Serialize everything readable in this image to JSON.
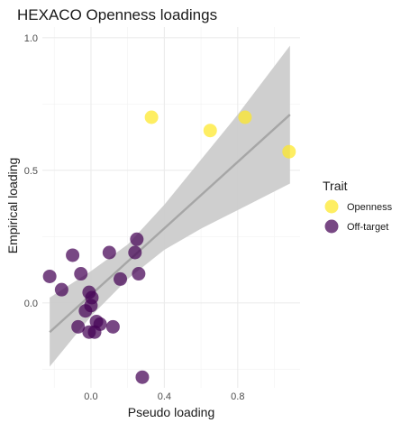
{
  "chart_data": {
    "type": "scatter",
    "title": "HEXACO Openness loadings",
    "xlabel": "Pseudo loading",
    "ylabel": "Empirical loading",
    "xlim": [
      -0.265,
      1.14
    ],
    "ylim": [
      -0.32,
      1.04
    ],
    "x_ticks": [
      0.0,
      0.4,
      0.8
    ],
    "x_tick_labels": [
      "0.0",
      "0.4",
      "0.8"
    ],
    "y_ticks": [
      0.0,
      0.5,
      1.0
    ],
    "y_tick_labels": [
      "0.0",
      "0.5",
      "1.0"
    ],
    "grid": true,
    "legend": {
      "title": "Trait",
      "position": "right",
      "entries": [
        {
          "label": "Openness",
          "color": "#fde725"
        },
        {
          "label": "Off-target",
          "color": "#440154"
        }
      ]
    },
    "series": [
      {
        "name": "Openness",
        "color": "#fde725",
        "points": [
          {
            "x": 0.33,
            "y": 0.7
          },
          {
            "x": 0.65,
            "y": 0.65
          },
          {
            "x": 0.84,
            "y": 0.7
          },
          {
            "x": 1.08,
            "y": 0.57
          }
        ]
      },
      {
        "name": "Off-target",
        "color": "#440154",
        "points": [
          {
            "x": -0.225,
            "y": 0.1
          },
          {
            "x": -0.16,
            "y": 0.05
          },
          {
            "x": -0.1,
            "y": 0.18
          },
          {
            "x": -0.055,
            "y": 0.11
          },
          {
            "x": 0.1,
            "y": 0.19
          },
          {
            "x": 0.24,
            "y": 0.19
          },
          {
            "x": 0.25,
            "y": 0.24
          },
          {
            "x": 0.26,
            "y": 0.11
          },
          {
            "x": 0.16,
            "y": 0.09
          },
          {
            "x": -0.01,
            "y": 0.04
          },
          {
            "x": 0.005,
            "y": 0.02
          },
          {
            "x": 0.0,
            "y": -0.01
          },
          {
            "x": -0.03,
            "y": -0.03
          },
          {
            "x": -0.07,
            "y": -0.09
          },
          {
            "x": 0.03,
            "y": -0.07
          },
          {
            "x": 0.05,
            "y": -0.08
          },
          {
            "x": 0.12,
            "y": -0.09
          },
          {
            "x": -0.01,
            "y": -0.11
          },
          {
            "x": 0.02,
            "y": -0.11
          },
          {
            "x": 0.28,
            "y": -0.28
          }
        ]
      }
    ],
    "fit_line": {
      "color": "#a6a6a6",
      "points": [
        {
          "x": -0.225,
          "y": -0.11
        },
        {
          "x": 1.085,
          "y": 0.71
        }
      ],
      "band_color": "#cccccc",
      "band": [
        {
          "x": -0.225,
          "lo": -0.24,
          "hi": 0.02
        },
        {
          "x": 0.0,
          "lo": -0.05,
          "hi": 0.12
        },
        {
          "x": 0.2,
          "lo": 0.09,
          "hi": 0.22
        },
        {
          "x": 0.4,
          "lo": 0.2,
          "hi": 0.37
        },
        {
          "x": 0.6,
          "lo": 0.28,
          "hi": 0.54
        },
        {
          "x": 0.8,
          "lo": 0.35,
          "hi": 0.71
        },
        {
          "x": 1.085,
          "lo": 0.45,
          "hi": 0.97
        }
      ]
    }
  }
}
